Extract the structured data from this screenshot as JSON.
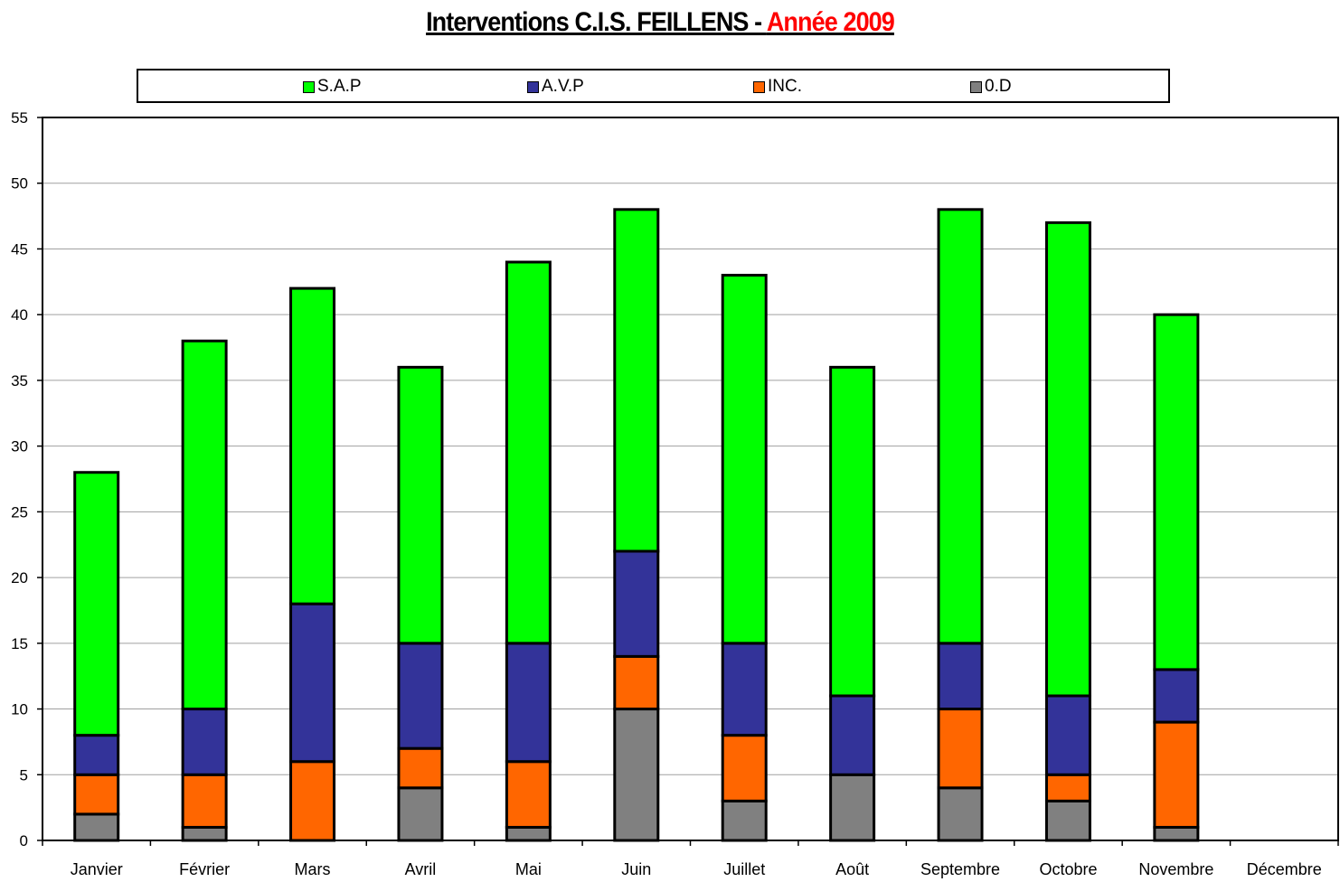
{
  "title": {
    "main": "Interventions C.I.S. FEILLENS - ",
    "year": "Année 2009"
  },
  "colors": {
    "S.A.P": "#00ff00",
    "A.V.P": "#333399",
    "INC.": "#ff6600",
    "0.D": "#808080",
    "title_year": "#ff0000"
  },
  "chart_data": {
    "type": "bar",
    "stacked": true,
    "categories": [
      "Janvier",
      "Février",
      "Mars",
      "Avril",
      "Mai",
      "Juin",
      "Juillet",
      "Août",
      "Septembre",
      "Octobre",
      "Novembre",
      "Décembre"
    ],
    "series": [
      {
        "name": "0.D",
        "color": "#808080",
        "values": [
          2,
          1,
          0,
          4,
          1,
          10,
          3,
          5,
          4,
          3,
          1,
          0
        ]
      },
      {
        "name": "INC.",
        "color": "#ff6600",
        "values": [
          3,
          4,
          6,
          3,
          5,
          4,
          5,
          0,
          6,
          2,
          8,
          0
        ]
      },
      {
        "name": "A.V.P",
        "color": "#333399",
        "values": [
          3,
          5,
          12,
          8,
          9,
          8,
          7,
          6,
          5,
          6,
          4,
          0
        ]
      },
      {
        "name": "S.A.P",
        "color": "#00ff00",
        "values": [
          20,
          28,
          24,
          21,
          29,
          26,
          28,
          25,
          33,
          36,
          27,
          0
        ]
      }
    ],
    "legend_order": [
      "S.A.P",
      "A.V.P",
      "INC.",
      "0.D"
    ],
    "ylim": [
      0,
      55
    ],
    "yticks": [
      0,
      5,
      10,
      15,
      20,
      25,
      30,
      35,
      40,
      45,
      50,
      55
    ],
    "grid": true,
    "legend_position": "top"
  }
}
